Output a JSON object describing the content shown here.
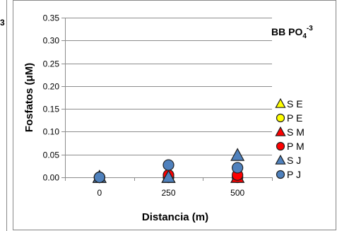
{
  "chart_data": {
    "type": "scatter",
    "title": "",
    "annotation": {
      "main": "BB PO",
      "sub": "4",
      "sup": "-3"
    },
    "left_edge_fragment": "3",
    "xlabel": "Distancia (m)",
    "ylabel": "Fosfatos (μM)",
    "x_categories": [
      "0",
      "250",
      "500"
    ],
    "y_ticks": [
      "0.00",
      "0.05",
      "0.10",
      "0.15",
      "0.20",
      "0.25",
      "0.30",
      "0.35"
    ],
    "ylim": [
      0,
      0.35
    ],
    "grid": true,
    "legend_position": "right",
    "series": [
      {
        "name": "S E",
        "marker": "triangle",
        "color": "#FFFF00",
        "values": [
          0.0,
          0.0,
          0.0
        ]
      },
      {
        "name": "P E",
        "marker": "circle",
        "color": "#FFFF00",
        "values": [
          0.0,
          0.0,
          0.0
        ]
      },
      {
        "name": "S M",
        "marker": "triangle",
        "color": "#FF0000",
        "values": [
          0.0,
          0.0,
          0.0
        ]
      },
      {
        "name": "P M",
        "marker": "circle",
        "color": "#FF0000",
        "values": [
          0.0,
          0.005,
          0.005
        ]
      },
      {
        "name": "S J",
        "marker": "triangle",
        "color": "#4F81BD",
        "values": [
          0.0,
          0.0,
          0.048
        ]
      },
      {
        "name": "P J",
        "marker": "circle",
        "color": "#4F81BD",
        "values": [
          0.0,
          0.027,
          0.021
        ]
      }
    ]
  }
}
